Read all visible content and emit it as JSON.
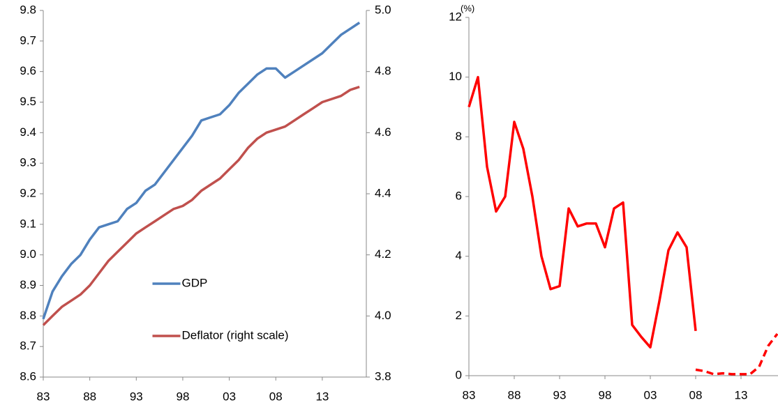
{
  "chart_data": [
    {
      "type": "line",
      "categories": [
        "83",
        null,
        null,
        null,
        null,
        "88",
        null,
        null,
        null,
        null,
        "93",
        null,
        null,
        null,
        null,
        "98",
        null,
        null,
        null,
        null,
        "03",
        null,
        null,
        null,
        null,
        "08",
        null,
        null,
        null,
        null,
        "13",
        null,
        null,
        null,
        null
      ],
      "series": [
        {
          "name": "GDP",
          "color": "#4f81bd",
          "values": [
            8.79,
            8.88,
            8.93,
            8.97,
            9.0,
            9.05,
            9.09,
            9.1,
            9.11,
            9.15,
            9.17,
            9.21,
            9.23,
            9.27,
            9.31,
            9.35,
            9.39,
            9.44,
            9.45,
            9.46,
            9.49,
            9.53,
            9.56,
            9.59,
            9.61,
            9.61,
            9.58,
            9.6,
            9.62,
            9.64,
            9.66,
            9.69,
            9.72,
            9.74,
            9.76
          ]
        },
        {
          "name": "Deflator (right scale)",
          "color": "#c0504d",
          "axis": "y2",
          "values": [
            3.97,
            4.0,
            4.03,
            4.05,
            4.07,
            4.1,
            4.14,
            4.18,
            4.21,
            4.24,
            4.27,
            4.29,
            4.31,
            4.33,
            4.35,
            4.36,
            4.38,
            4.41,
            4.43,
            4.45,
            4.48,
            4.51,
            4.55,
            4.58,
            4.6,
            4.61,
            4.62,
            4.64,
            4.66,
            4.68,
            4.7,
            4.71,
            4.72,
            4.74,
            4.75
          ]
        }
      ],
      "ylim": [
        8.6,
        9.8
      ],
      "yticks": [
        8.6,
        8.7,
        8.8,
        8.9,
        {
          "value": 9,
          "label": "9.0"
        },
        9.1,
        9.2,
        9.3,
        9.4,
        9.5,
        9.6,
        9.7,
        9.8
      ],
      "y2lim": [
        3.8,
        5.0
      ],
      "y2ticks": [
        3.8,
        {
          "value": 4,
          "label": "4.0"
        },
        4.2,
        4.4,
        4.6,
        4.8,
        {
          "value": 5,
          "label": "5.0"
        }
      ],
      "legend": "center"
    },
    {
      "type": "line",
      "y_label": "(%)",
      "categories": [
        "83",
        null,
        null,
        null,
        null,
        "88",
        null,
        null,
        null,
        null,
        "93",
        null,
        null,
        null,
        null,
        "98",
        null,
        null,
        null,
        null,
        "03",
        null,
        null,
        null,
        null,
        "08",
        null,
        null,
        null,
        null,
        "13",
        null,
        null,
        null,
        null
      ],
      "series": [
        {
          "color": "#ff0000",
          "dash": false,
          "values": [
            9.0,
            10.0,
            7.0,
            5.5,
            6.0,
            8.5,
            7.6,
            6.0,
            4.0,
            2.9,
            3.0,
            5.6,
            5.0,
            5.1,
            5.1,
            4.3,
            5.6,
            5.8,
            1.7,
            1.3,
            0.95,
            2.5,
            4.2,
            4.8,
            4.3,
            1.5,
            null,
            null,
            null,
            null,
            null,
            null,
            null,
            null,
            null
          ]
        },
        {
          "color": "#ff0000",
          "dash": true,
          "values": [
            null,
            null,
            null,
            null,
            null,
            null,
            null,
            null,
            null,
            null,
            null,
            null,
            null,
            null,
            null,
            null,
            null,
            null,
            null,
            null,
            null,
            null,
            null,
            null,
            null,
            0.2,
            0.15,
            0.05,
            0.08,
            0.05,
            0.05,
            0.05,
            0.3,
            1.0,
            1.4
          ]
        }
      ],
      "ylim": [
        0,
        12
      ],
      "yticks": [
        0,
        2,
        4,
        6,
        8,
        10,
        12
      ]
    }
  ]
}
